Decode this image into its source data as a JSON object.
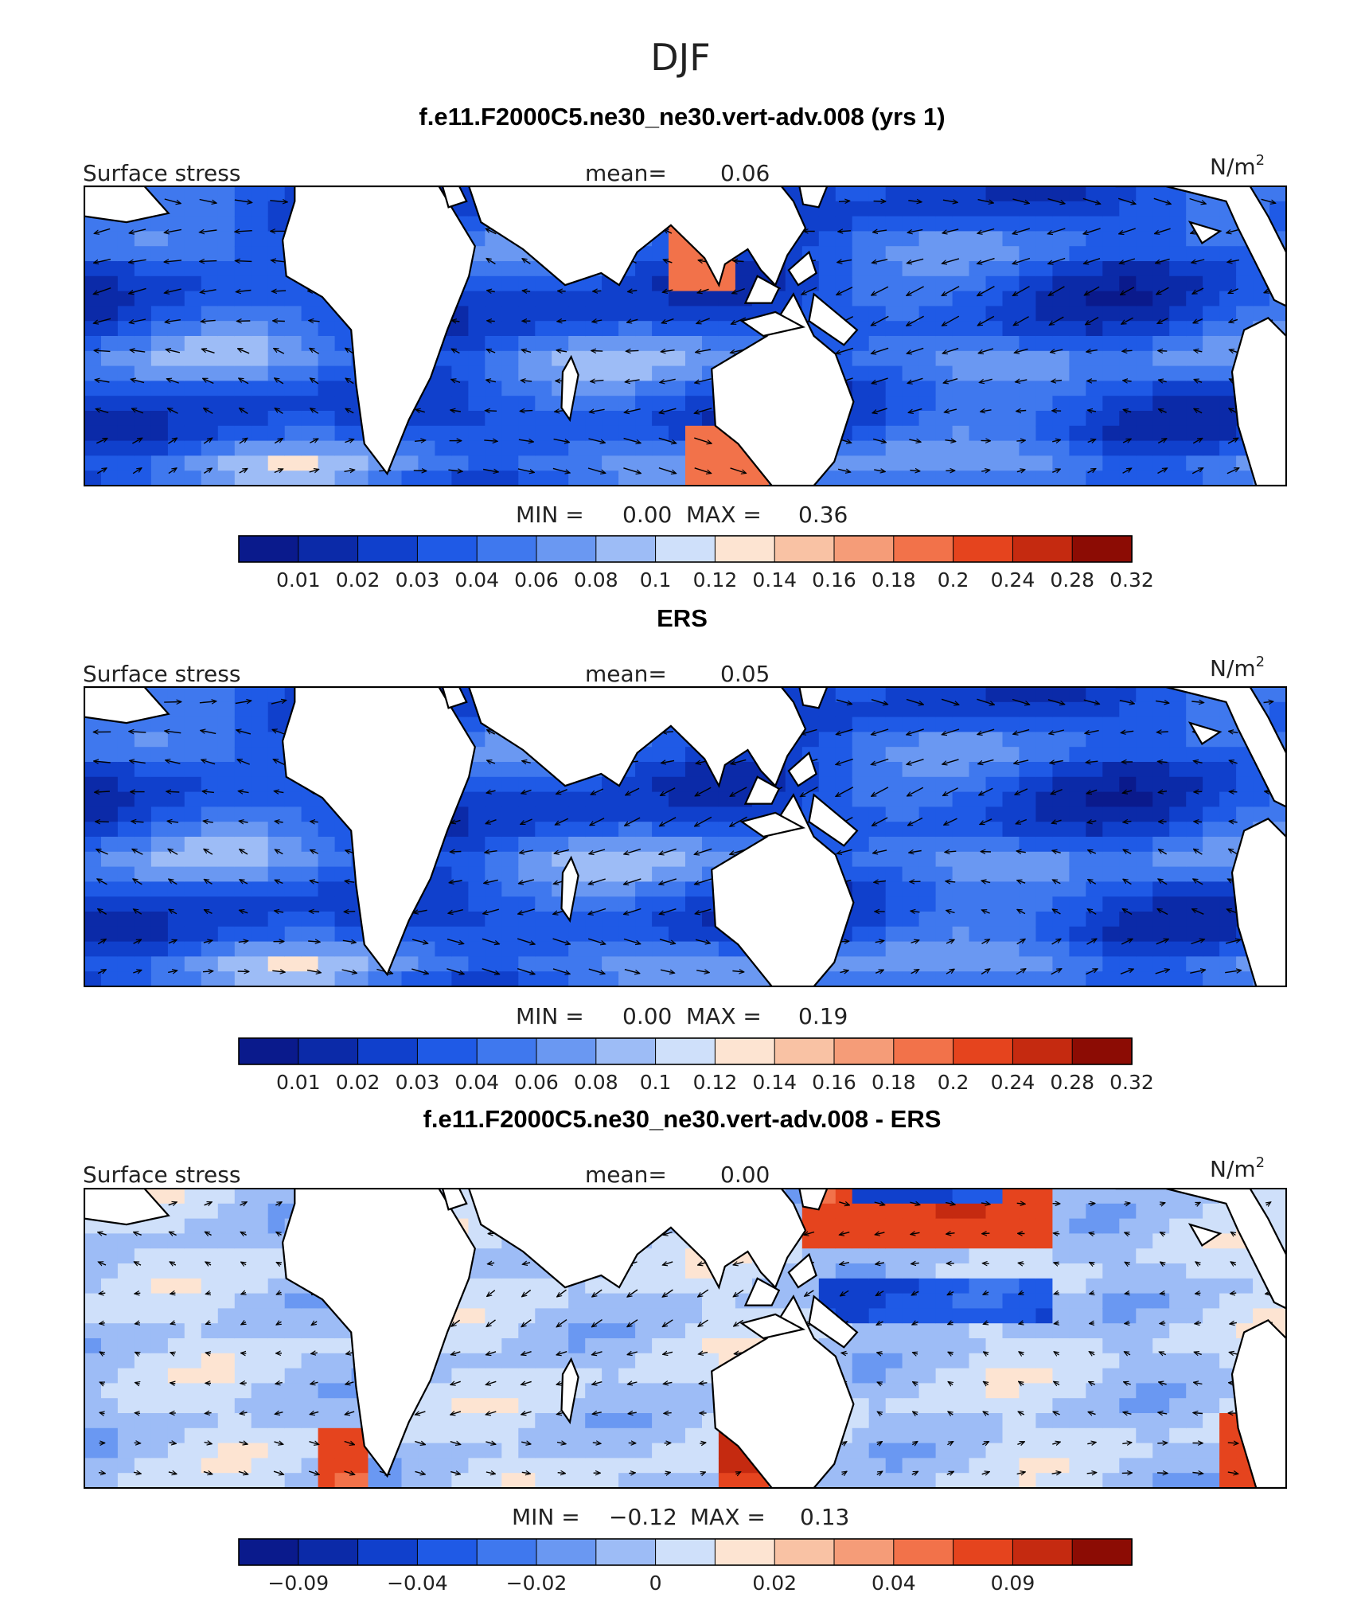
{
  "figure": {
    "title": "DJF"
  },
  "panels": [
    {
      "title": "f.e11.F2000C5.ne30_ne30.vert-adv.008 (yrs 1)",
      "left_label": "Surface stress",
      "mean_label": "mean=",
      "mean_value": "0.06",
      "units": "N/m",
      "units_sup": "2",
      "min_label": "MIN =",
      "min_value": "0.00",
      "max_label": "MAX =",
      "max_value": "0.36",
      "palette": "sequential",
      "colorbar_ticks": [
        "0.01",
        "0.02",
        "0.03",
        "0.04",
        "0.06",
        "0.08",
        "0.1",
        "0.12",
        "0.14",
        "0.16",
        "0.18",
        "0.2",
        "0.24",
        "0.28",
        "0.32"
      ]
    },
    {
      "title": "ERS",
      "left_label": "Surface stress",
      "mean_label": "mean=",
      "mean_value": "0.05",
      "units": "N/m",
      "units_sup": "2",
      "min_label": "MIN =",
      "min_value": "0.00",
      "max_label": "MAX =",
      "max_value": "0.19",
      "palette": "sequential",
      "colorbar_ticks": [
        "0.01",
        "0.02",
        "0.03",
        "0.04",
        "0.06",
        "0.08",
        "0.1",
        "0.12",
        "0.14",
        "0.16",
        "0.18",
        "0.2",
        "0.24",
        "0.28",
        "0.32"
      ]
    },
    {
      "title": "f.e11.F2000C5.ne30_ne30.vert-adv.008 - ERS",
      "left_label": "Surface stress",
      "mean_label": "mean=",
      "mean_value": "0.00",
      "units": "N/m",
      "units_sup": "2",
      "min_label": "MIN =",
      "min_value": "−0.12",
      "max_label": "MAX =",
      "max_value": "0.13",
      "palette": "diverging",
      "colorbar_ticks": [
        "−0.09",
        "",
        "−0.04",
        "",
        "−0.02",
        "",
        "0",
        "",
        "0.02",
        "",
        "0.04",
        "",
        "0.09",
        "",
        ""
      ]
    }
  ],
  "colors": {
    "colorbar_fill": [
      "#0a1a8c",
      "#0b2aa8",
      "#1040cc",
      "#1f5ae6",
      "#3f78ee",
      "#6a98f2",
      "#9dbcf6",
      "#cfe0fa",
      "#fde4d2",
      "#f9c2a4",
      "#f59c78",
      "#f2724a",
      "#e5441e",
      "#c52a10",
      "#8c0c04"
    ],
    "land": "#ffffff",
    "coast": "#000000"
  },
  "chart_data": [
    {
      "type": "heatmap",
      "title": "f.e11.F2000C5.ne30_ne30.vert-adv.008 (yrs 1)",
      "field": "Surface stress",
      "units": "N/m2",
      "mean": 0.06,
      "min": 0.0,
      "max": 0.36,
      "levels": [
        0.01,
        0.02,
        0.03,
        0.04,
        0.06,
        0.08,
        0.1,
        0.12,
        0.14,
        0.16,
        0.18,
        0.2,
        0.24,
        0.28,
        0.32
      ],
      "overlay": "wind stress vectors"
    },
    {
      "type": "heatmap",
      "title": "ERS",
      "field": "Surface stress",
      "units": "N/m2",
      "mean": 0.05,
      "min": 0.0,
      "max": 0.19,
      "levels": [
        0.01,
        0.02,
        0.03,
        0.04,
        0.06,
        0.08,
        0.1,
        0.12,
        0.14,
        0.16,
        0.18,
        0.2,
        0.24,
        0.28,
        0.32
      ],
      "overlay": "wind stress vectors"
    },
    {
      "type": "heatmap",
      "title": "f.e11.F2000C5.ne30_ne30.vert-adv.008 - ERS",
      "field": "Surface stress",
      "units": "N/m2",
      "mean": 0.0,
      "min": -0.12,
      "max": 0.13,
      "colorbar_labels": [
        -0.09,
        -0.04,
        -0.02,
        0,
        0.02,
        0.04,
        0.09
      ],
      "overlay": "wind stress difference vectors"
    }
  ]
}
